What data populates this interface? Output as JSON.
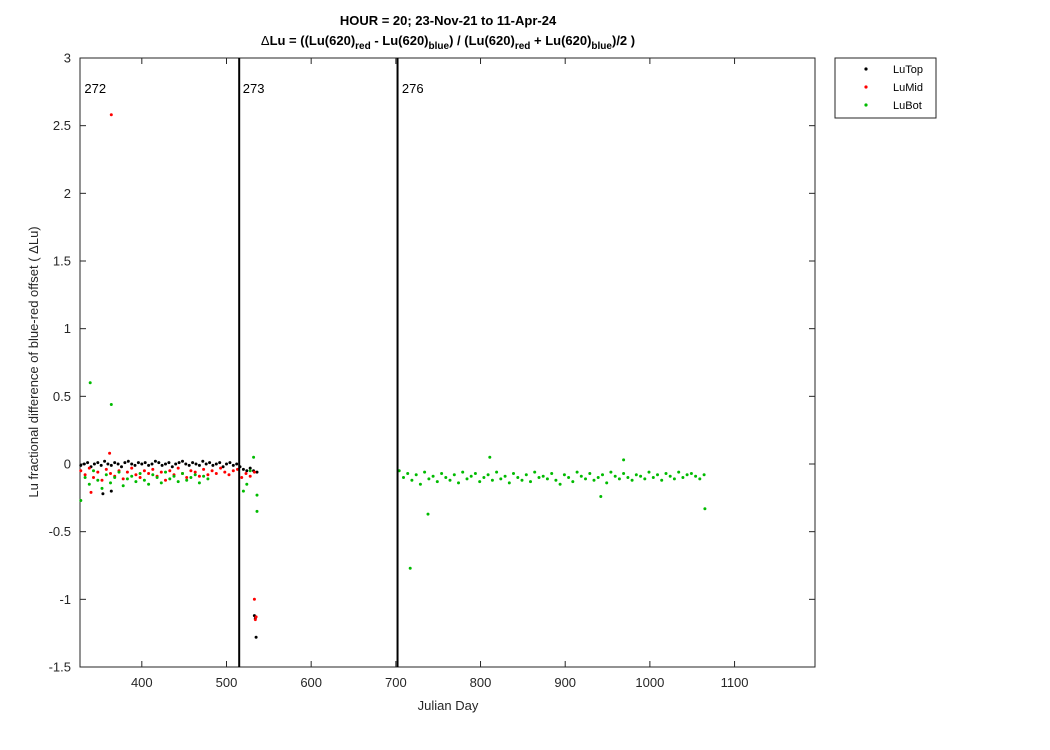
{
  "chart_data": {
    "type": "scatter",
    "title_line1": "HOUR = 20; 23-Nov-21 to 11-Apr-24",
    "title_line2": {
      "delta": "Δ",
      "a": "Lu = ((Lu(620)",
      "sub1": "red",
      "b": " - Lu(620)",
      "sub2": "blue",
      "c": ") / (Lu(620)",
      "sub3": "red",
      "d": " + Lu(620)",
      "sub4": "blue",
      "e": ")/2  )"
    },
    "xlabel": "Julian Day",
    "ylabel": "Lu fractional difference of blue-red offset (  ΔLu)",
    "xlim": [
      327,
      1195
    ],
    "ylim": [
      -1.5,
      3
    ],
    "xticks": [
      400,
      500,
      600,
      700,
      800,
      900,
      1000,
      1100
    ],
    "yticks": [
      -1.5,
      -1,
      -0.5,
      0,
      0.5,
      1,
      1.5,
      2,
      2.5,
      3
    ],
    "ytick_labels": [
      "-1.5",
      "-1",
      "-0.5",
      "0",
      "0.5",
      "1",
      "1.5",
      "2",
      "2.5",
      "3"
    ],
    "vlines": [
      515,
      702
    ],
    "region_labels": [
      {
        "text": "272",
        "x": 345
      },
      {
        "text": "273",
        "x": 532
      },
      {
        "text": "276",
        "x": 720
      }
    ],
    "legend": {
      "position": "outside-top-right",
      "entries": [
        "LuTop",
        "LuMid",
        "LuBot"
      ]
    },
    "colors": {
      "LuTop": "#000000",
      "LuMid": "#ff0000",
      "LuBot": "#00bb00",
      "axis": "#262626"
    },
    "series": [
      {
        "name": "LuTop",
        "x": [
          328,
          332,
          336,
          340,
          344,
          348,
          352,
          356,
          360,
          364,
          368,
          372,
          376,
          380,
          384,
          388,
          392,
          396,
          400,
          404,
          408,
          412,
          416,
          420,
          424,
          428,
          432,
          436,
          440,
          444,
          448,
          452,
          456,
          460,
          464,
          468,
          472,
          476,
          480,
          484,
          488,
          492,
          496,
          500,
          504,
          508,
          512,
          516,
          520,
          524,
          528,
          532,
          536,
          354,
          364,
          533,
          534,
          535
        ],
        "y": [
          -0.01,
          0,
          0.01,
          -0.02,
          0,
          0.01,
          -0.01,
          0.02,
          0,
          -0.01,
          0.01,
          0,
          -0.02,
          0.01,
          0.02,
          0,
          -0.01,
          0.01,
          0,
          0.01,
          -0.01,
          0,
          0.02,
          0.01,
          -0.01,
          0,
          0.01,
          -0.02,
          0,
          0.01,
          0.02,
          0,
          -0.01,
          0.01,
          0,
          -0.01,
          0.02,
          0,
          0.01,
          -0.01,
          0,
          0.01,
          -0.02,
          0,
          0.01,
          -0.01,
          0,
          -0.02,
          -0.04,
          -0.05,
          -0.03,
          -0.05,
          -0.06,
          -0.22,
          -0.2,
          -1.12,
          -1.14,
          -1.28
        ]
      },
      {
        "name": "LuMid",
        "x": [
          328,
          333,
          338,
          343,
          348,
          353,
          358,
          363,
          368,
          373,
          378,
          383,
          388,
          393,
          398,
          403,
          408,
          413,
          418,
          423,
          428,
          433,
          438,
          443,
          448,
          453,
          458,
          463,
          468,
          473,
          478,
          483,
          488,
          493,
          498,
          503,
          508,
          513,
          518,
          523,
          528,
          533,
          364,
          340,
          362,
          533,
          534,
          535
        ],
        "y": [
          -0.05,
          -0.08,
          -0.03,
          -0.1,
          -0.06,
          -0.12,
          -0.04,
          -0.07,
          -0.09,
          -0.05,
          -0.11,
          -0.06,
          -0.03,
          -0.08,
          -0.1,
          -0.05,
          -0.07,
          -0.04,
          -0.09,
          -0.06,
          -0.12,
          -0.05,
          -0.08,
          -0.03,
          -0.07,
          -0.1,
          -0.05,
          -0.06,
          -0.09,
          -0.04,
          -0.08,
          -0.05,
          -0.07,
          -0.03,
          -0.06,
          -0.08,
          -0.05,
          -0.04,
          -0.1,
          -0.07,
          -0.09,
          -0.06,
          2.58,
          -0.21,
          0.08,
          -1.0,
          -1.15,
          -1.13
        ]
      },
      {
        "name": "LuBot",
        "x": [
          328,
          333,
          338,
          343,
          348,
          353,
          358,
          363,
          368,
          373,
          378,
          383,
          388,
          393,
          398,
          403,
          408,
          413,
          418,
          423,
          428,
          433,
          438,
          443,
          448,
          453,
          458,
          463,
          468,
          473,
          478,
          520,
          524,
          528,
          532,
          536,
          339,
          364,
          536,
          704,
          709,
          714,
          719,
          724,
          729,
          734,
          739,
          744,
          749,
          754,
          759,
          764,
          769,
          774,
          779,
          784,
          789,
          794,
          799,
          804,
          809,
          814,
          819,
          824,
          829,
          834,
          839,
          844,
          849,
          854,
          859,
          864,
          869,
          874,
          879,
          884,
          889,
          894,
          899,
          904,
          909,
          914,
          919,
          924,
          929,
          934,
          939,
          944,
          949,
          954,
          959,
          964,
          969,
          974,
          979,
          984,
          989,
          994,
          999,
          1004,
          1009,
          1014,
          1019,
          1024,
          1029,
          1034,
          1039,
          1044,
          1049,
          1054,
          1059,
          1064,
          717,
          738,
          811,
          942,
          969,
          1065
        ],
        "y": [
          -0.27,
          -0.1,
          -0.15,
          -0.05,
          -0.12,
          -0.18,
          -0.08,
          -0.14,
          -0.1,
          -0.06,
          -0.16,
          -0.11,
          -0.09,
          -0.13,
          -0.07,
          -0.12,
          -0.15,
          -0.08,
          -0.1,
          -0.14,
          -0.06,
          -0.11,
          -0.09,
          -0.13,
          -0.07,
          -0.12,
          -0.1,
          -0.08,
          -0.14,
          -0.09,
          -0.11,
          -0.2,
          -0.15,
          -0.05,
          0.05,
          -0.35,
          0.6,
          0.44,
          -0.23,
          -0.05,
          -0.1,
          -0.07,
          -0.12,
          -0.08,
          -0.15,
          -0.06,
          -0.11,
          -0.09,
          -0.13,
          -0.07,
          -0.1,
          -0.12,
          -0.08,
          -0.14,
          -0.06,
          -0.11,
          -0.09,
          -0.07,
          -0.13,
          -0.1,
          -0.08,
          -0.12,
          -0.06,
          -0.11,
          -0.09,
          -0.14,
          -0.07,
          -0.1,
          -0.12,
          -0.08,
          -0.13,
          -0.06,
          -0.1,
          -0.09,
          -0.11,
          -0.07,
          -0.12,
          -0.15,
          -0.08,
          -0.1,
          -0.13,
          -0.06,
          -0.09,
          -0.11,
          -0.07,
          -0.12,
          -0.1,
          -0.08,
          -0.14,
          -0.06,
          -0.09,
          -0.11,
          -0.07,
          -0.1,
          -0.12,
          -0.08,
          -0.09,
          -0.11,
          -0.06,
          -0.1,
          -0.08,
          -0.12,
          -0.07,
          -0.09,
          -0.11,
          -0.06,
          -0.1,
          -0.08,
          -0.07,
          -0.09,
          -0.11,
          -0.08,
          -0.77,
          -0.37,
          0.05,
          -0.24,
          0.03,
          -0.33
        ]
      }
    ]
  }
}
